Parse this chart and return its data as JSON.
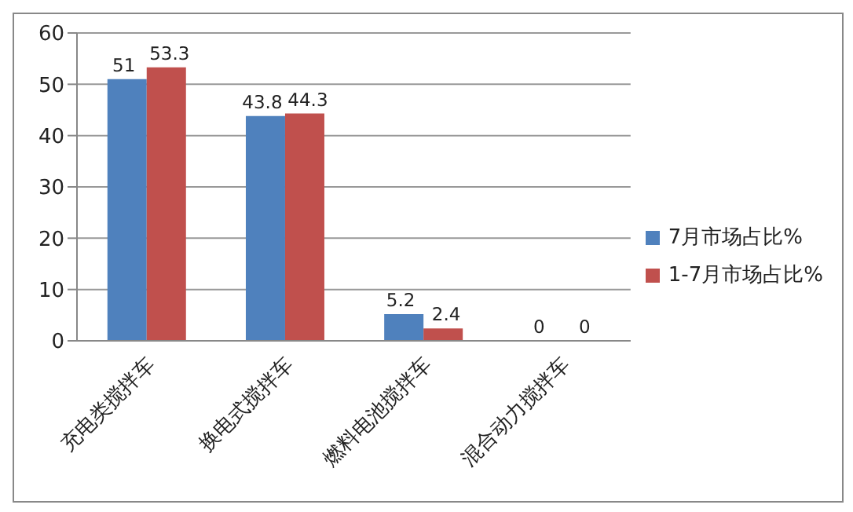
{
  "chart_data": {
    "type": "bar",
    "categories": [
      "充电类搅拌车",
      "换电式搅拌车",
      "燃料电池搅拌车",
      "混合动力搅拌车"
    ],
    "series": [
      {
        "name": "7月市场占比%",
        "color": "#4f81bd",
        "values": [
          51,
          43.8,
          5.2,
          0
        ]
      },
      {
        "name": "1-7月市场占比%",
        "color": "#c0504d",
        "values": [
          53.3,
          44.3,
          2.4,
          0
        ]
      }
    ],
    "ylim": [
      0,
      60
    ],
    "yticks": [
      0,
      10,
      20,
      30,
      40,
      50,
      60
    ],
    "grid": "y",
    "legend": "right",
    "data_labels": true
  }
}
